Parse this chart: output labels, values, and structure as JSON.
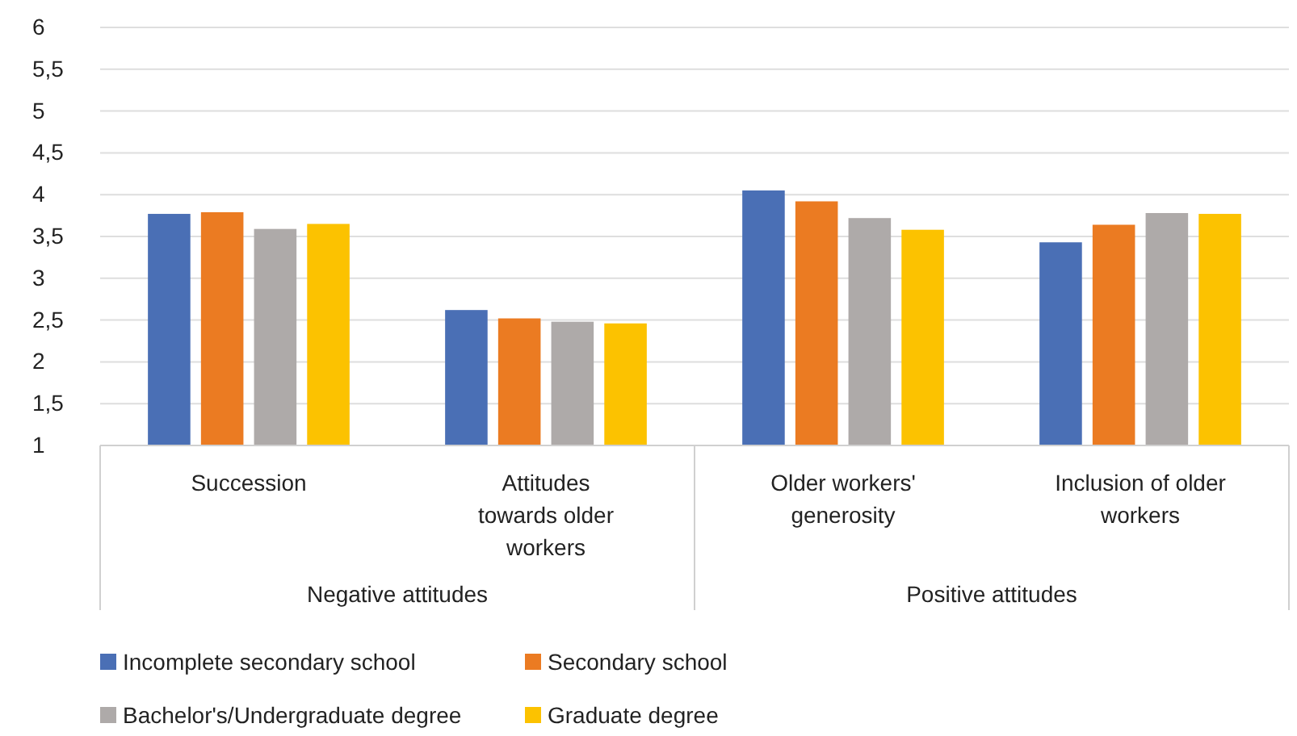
{
  "chart_data": {
    "type": "bar",
    "categories": [
      "Succession",
      "Attitudes towards older workers",
      "Older workers' generosity",
      "Inclusion of older workers"
    ],
    "series": [
      {
        "name": "Incomplete secondary school",
        "color": "#4a6fb5",
        "values": [
          3.77,
          2.62,
          4.05,
          3.43
        ]
      },
      {
        "name": "Secondary school",
        "color": "#eb7b22",
        "values": [
          3.79,
          2.52,
          3.92,
          3.64
        ]
      },
      {
        "name": "Bachelor's/Undergraduate degree",
        "color": "#aeaaa9",
        "values": [
          3.59,
          2.48,
          3.72,
          3.78
        ]
      },
      {
        "name": "Graduate degree",
        "color": "#fcc200",
        "values": [
          3.65,
          2.46,
          3.58,
          3.77
        ]
      }
    ],
    "ylim": [
      1,
      6
    ],
    "yticks": [
      1,
      {
        "value": 1.5,
        "label": "1,5"
      },
      2,
      {
        "value": 2.5,
        "label": "2,5"
      },
      3,
      {
        "value": 3.5,
        "label": "3,5"
      },
      4,
      {
        "value": 4.5,
        "label": "4,5"
      },
      5,
      {
        "value": 5.5,
        "label": "5,5"
      },
      6
    ],
    "grid": "y",
    "legend": "bottom",
    "annotations": [
      "Negative attitudes",
      "Positive attitudes"
    ]
  }
}
